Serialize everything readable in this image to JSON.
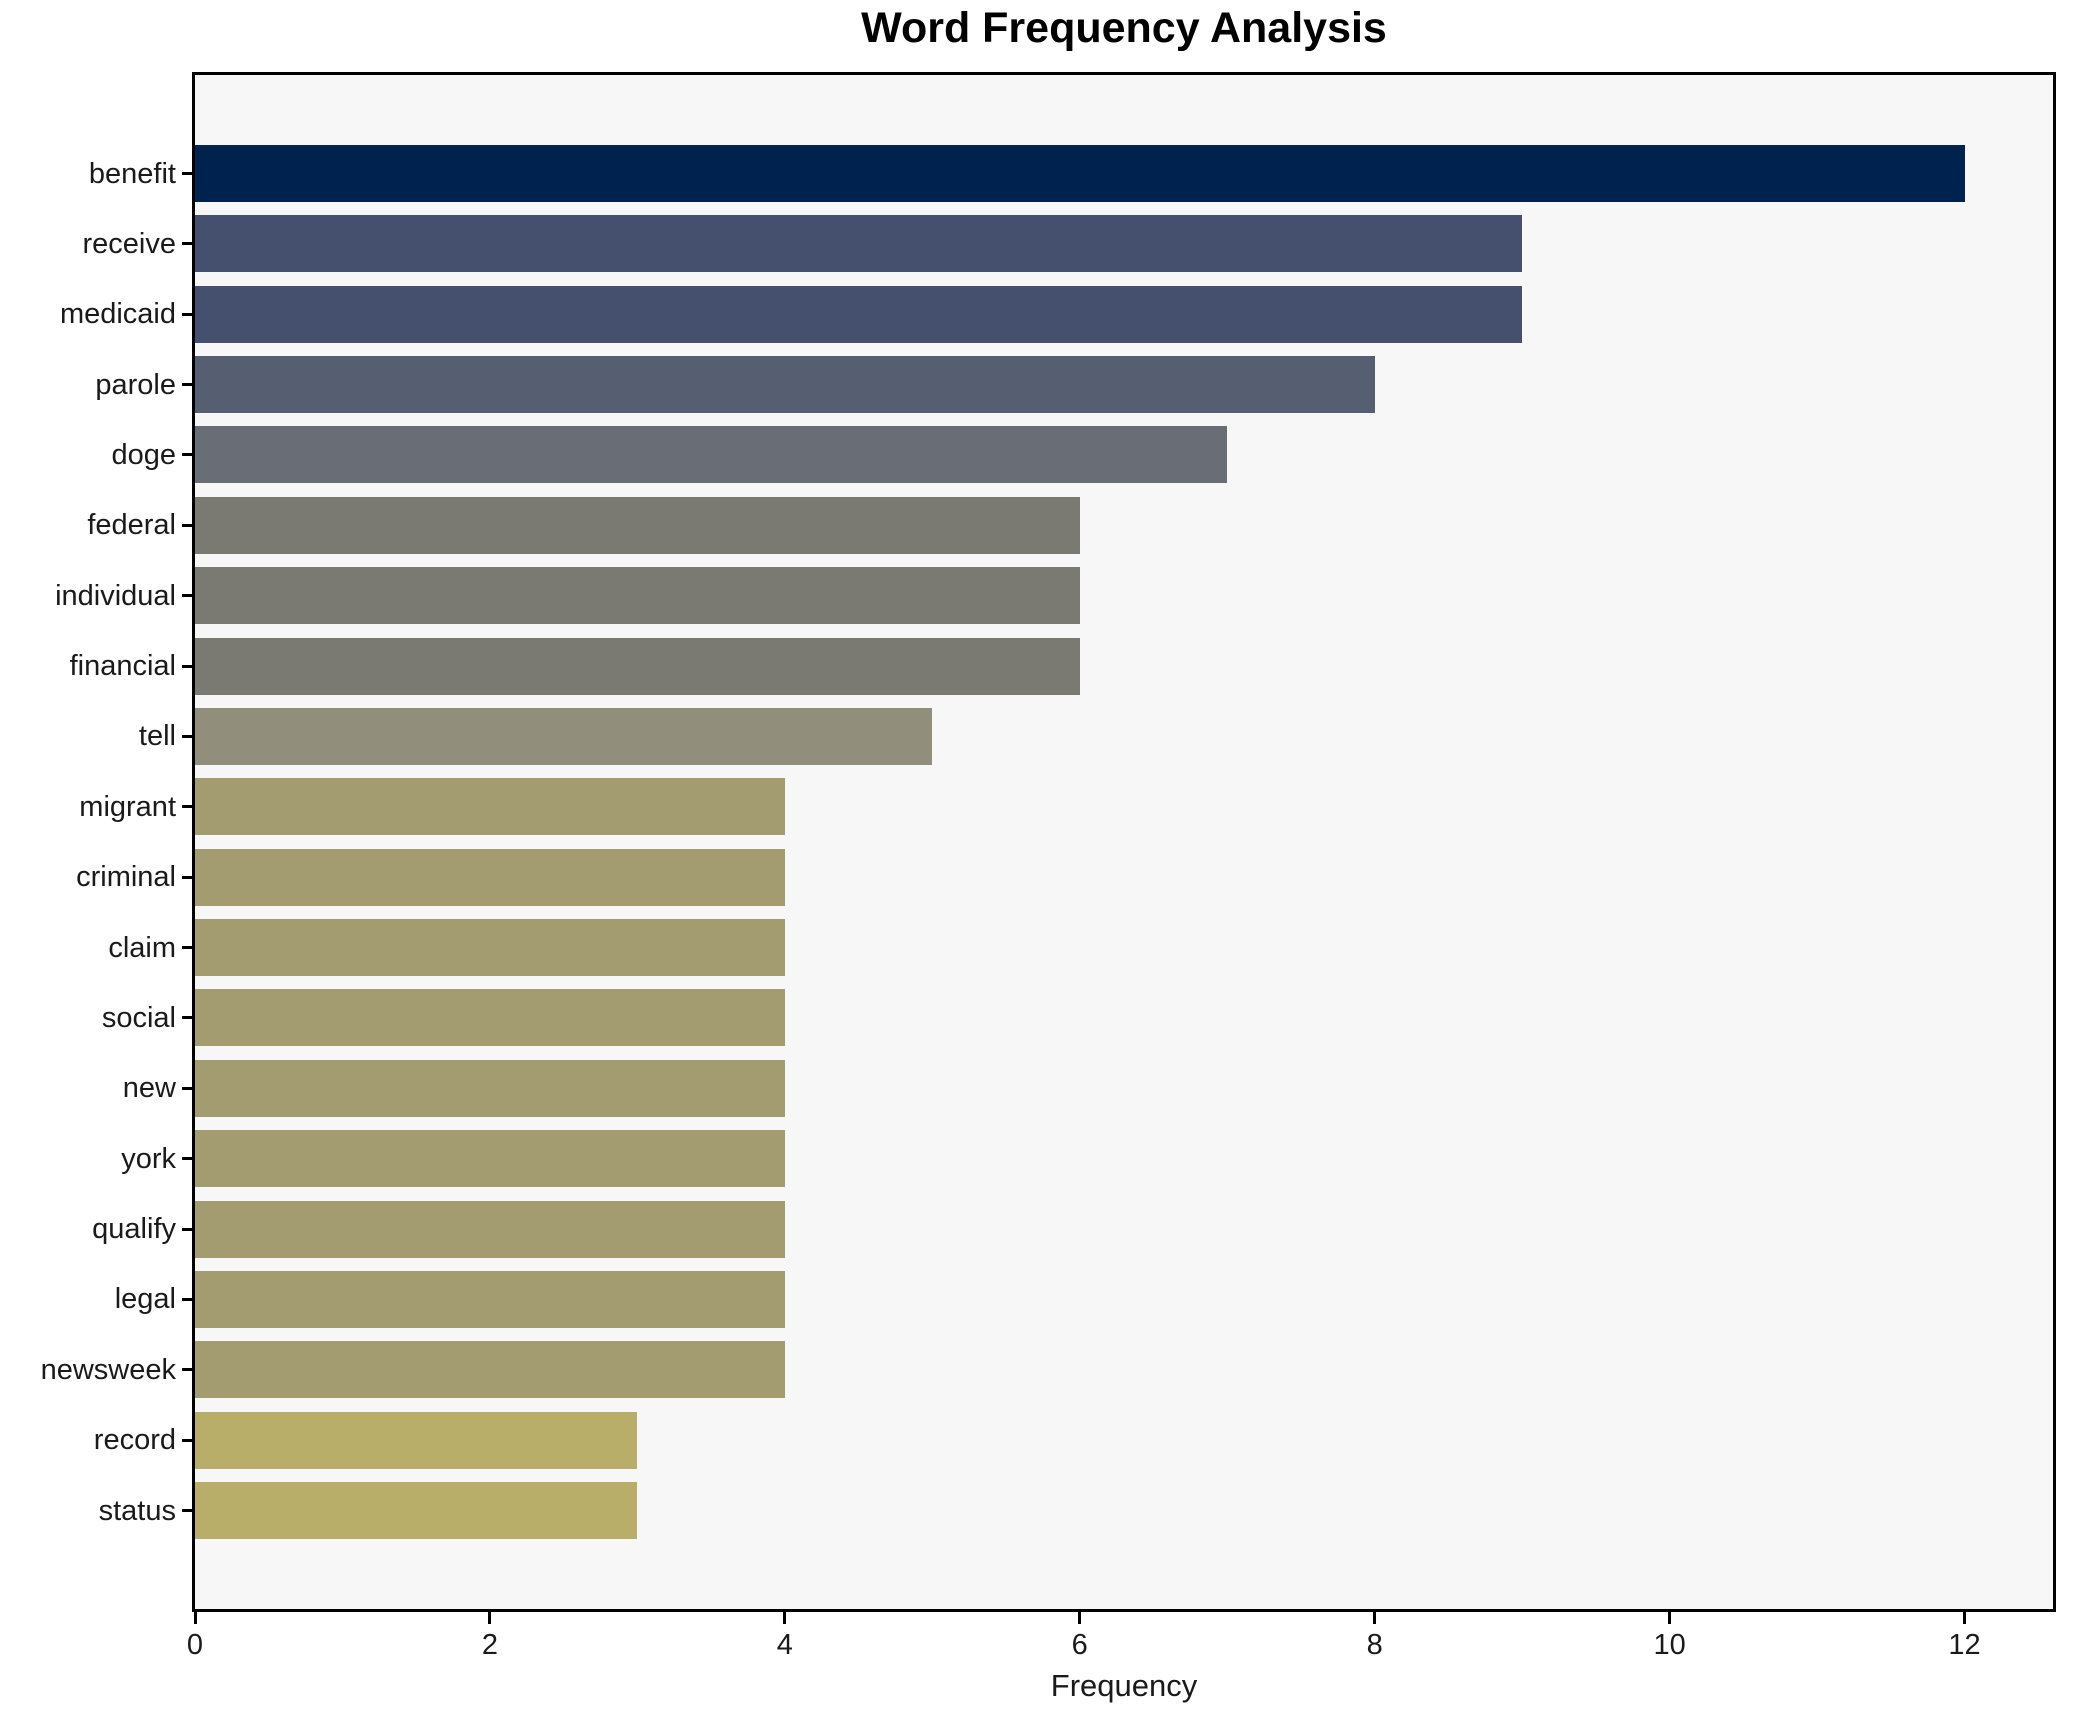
{
  "chart_data": {
    "type": "bar",
    "orientation": "horizontal",
    "title": "Word Frequency Analysis",
    "xlabel": "Frequency",
    "ylabel": "",
    "categories": [
      "benefit",
      "receive",
      "medicaid",
      "parole",
      "doge",
      "federal",
      "individual",
      "financial",
      "tell",
      "migrant",
      "criminal",
      "claim",
      "social",
      "new",
      "york",
      "qualify",
      "legal",
      "newsweek",
      "record",
      "status"
    ],
    "values": [
      12,
      9,
      9,
      8,
      7,
      6,
      6,
      6,
      5,
      4,
      4,
      4,
      4,
      4,
      4,
      4,
      4,
      4,
      3,
      3
    ],
    "bar_colors": [
      "#00224e",
      "#44506e",
      "#44506e",
      "#565e72",
      "#696d75",
      "#7a7a73",
      "#7a7a73",
      "#7a7a73",
      "#928e7c",
      "#a49c71",
      "#a49c71",
      "#a49c71",
      "#a49c71",
      "#a49c71",
      "#a49c71",
      "#a49c71",
      "#a49c71",
      "#a49c71",
      "#b8ad69",
      "#b8ad69"
    ],
    "colormap": "cividis-reversed-by-value",
    "xlim": [
      0,
      12.6
    ],
    "xticks": [
      0,
      2,
      4,
      6,
      8,
      10,
      12
    ],
    "grid": false,
    "legend": false,
    "plot_background": "#f7f7f8",
    "spine_color": "#000000"
  }
}
